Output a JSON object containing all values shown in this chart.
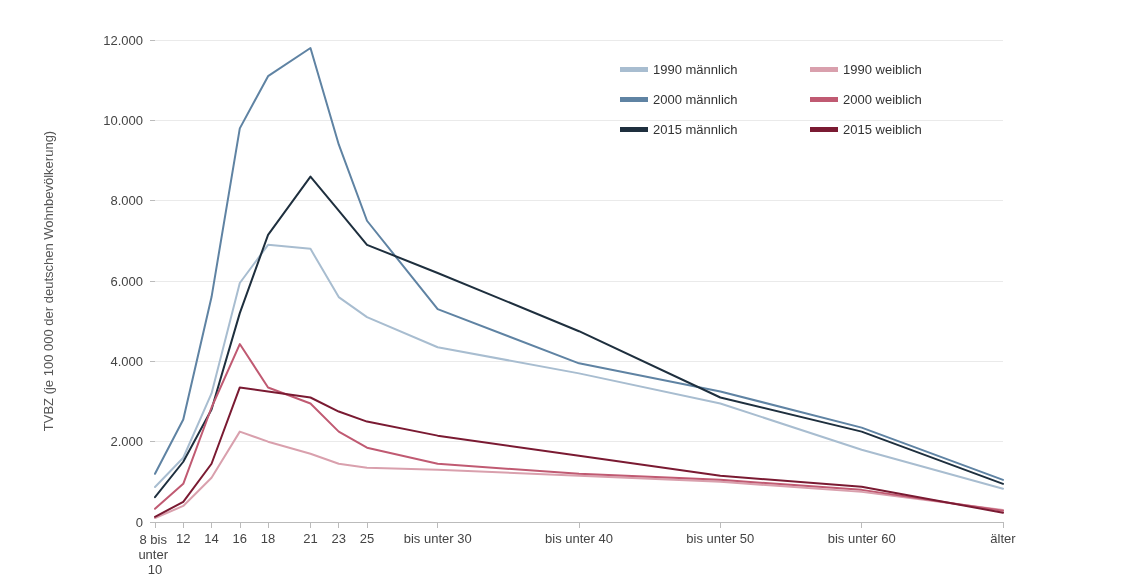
{
  "chart_data": {
    "type": "line",
    "ylabel": "TVBZ (je 100 000 der deutschen Wohnbevölkerung)",
    "x": [
      10,
      12,
      14,
      16,
      18,
      21,
      23,
      25,
      30,
      40,
      50,
      60,
      70
    ],
    "xlim": [
      10,
      70
    ],
    "xticks": [
      {
        "value": 10,
        "label": "8 bis unter 10"
      },
      12,
      14,
      16,
      18,
      21,
      23,
      25,
      {
        "value": 30,
        "label": "bis unter 30"
      },
      {
        "value": 40,
        "label": "bis unter 40"
      },
      {
        "value": 50,
        "label": "bis unter 50"
      },
      {
        "value": 60,
        "label": "bis unter 60"
      },
      {
        "value": 70,
        "label": "älter"
      }
    ],
    "ylim": [
      0,
      12000
    ],
    "yticks": [
      0,
      {
        "value": 2000,
        "label": "2.000"
      },
      {
        "value": 4000,
        "label": "4.000"
      },
      {
        "value": 6000,
        "label": "6.000"
      },
      {
        "value": 8000,
        "label": "8.000"
      },
      {
        "value": 10000,
        "label": "10.000"
      },
      {
        "value": 12000,
        "label": "12.000"
      }
    ],
    "grid": "y",
    "legend": "top right",
    "marker": "none",
    "line_style": "solid",
    "series": [
      {
        "name": "1990 männlich",
        "color": "#a8bdd0",
        "values": [
          870,
          1600,
          3200,
          5950,
          6900,
          6800,
          5600,
          5100,
          4350,
          3700,
          2950,
          1800,
          830
        ]
      },
      {
        "name": "2000 männlich",
        "color": "#5f83a3",
        "values": [
          1200,
          2550,
          5600,
          9800,
          11100,
          11800,
          9400,
          7500,
          5300,
          3950,
          3250,
          2350,
          1050
        ]
      },
      {
        "name": "2015 männlich",
        "color": "#1e2f3e",
        "values": [
          620,
          1500,
          2800,
          5200,
          7150,
          8600,
          7750,
          6900,
          6200,
          4750,
          3100,
          2250,
          950
        ]
      },
      {
        "name": "1990 weiblich",
        "color": "#d9a0ad",
        "values": [
          100,
          400,
          1100,
          2250,
          2000,
          1700,
          1450,
          1350,
          1300,
          1150,
          1000,
          750,
          300
        ]
      },
      {
        "name": "2000 weiblich",
        "color": "#c05a72",
        "values": [
          330,
          950,
          2850,
          4430,
          3350,
          2950,
          2250,
          1850,
          1450,
          1200,
          1050,
          800,
          280
        ]
      },
      {
        "name": "2015 weiblich",
        "color": "#7a1a32",
        "values": [
          130,
          500,
          1450,
          3350,
          3250,
          3100,
          2750,
          2500,
          2150,
          1650,
          1150,
          880,
          230
        ]
      }
    ]
  }
}
